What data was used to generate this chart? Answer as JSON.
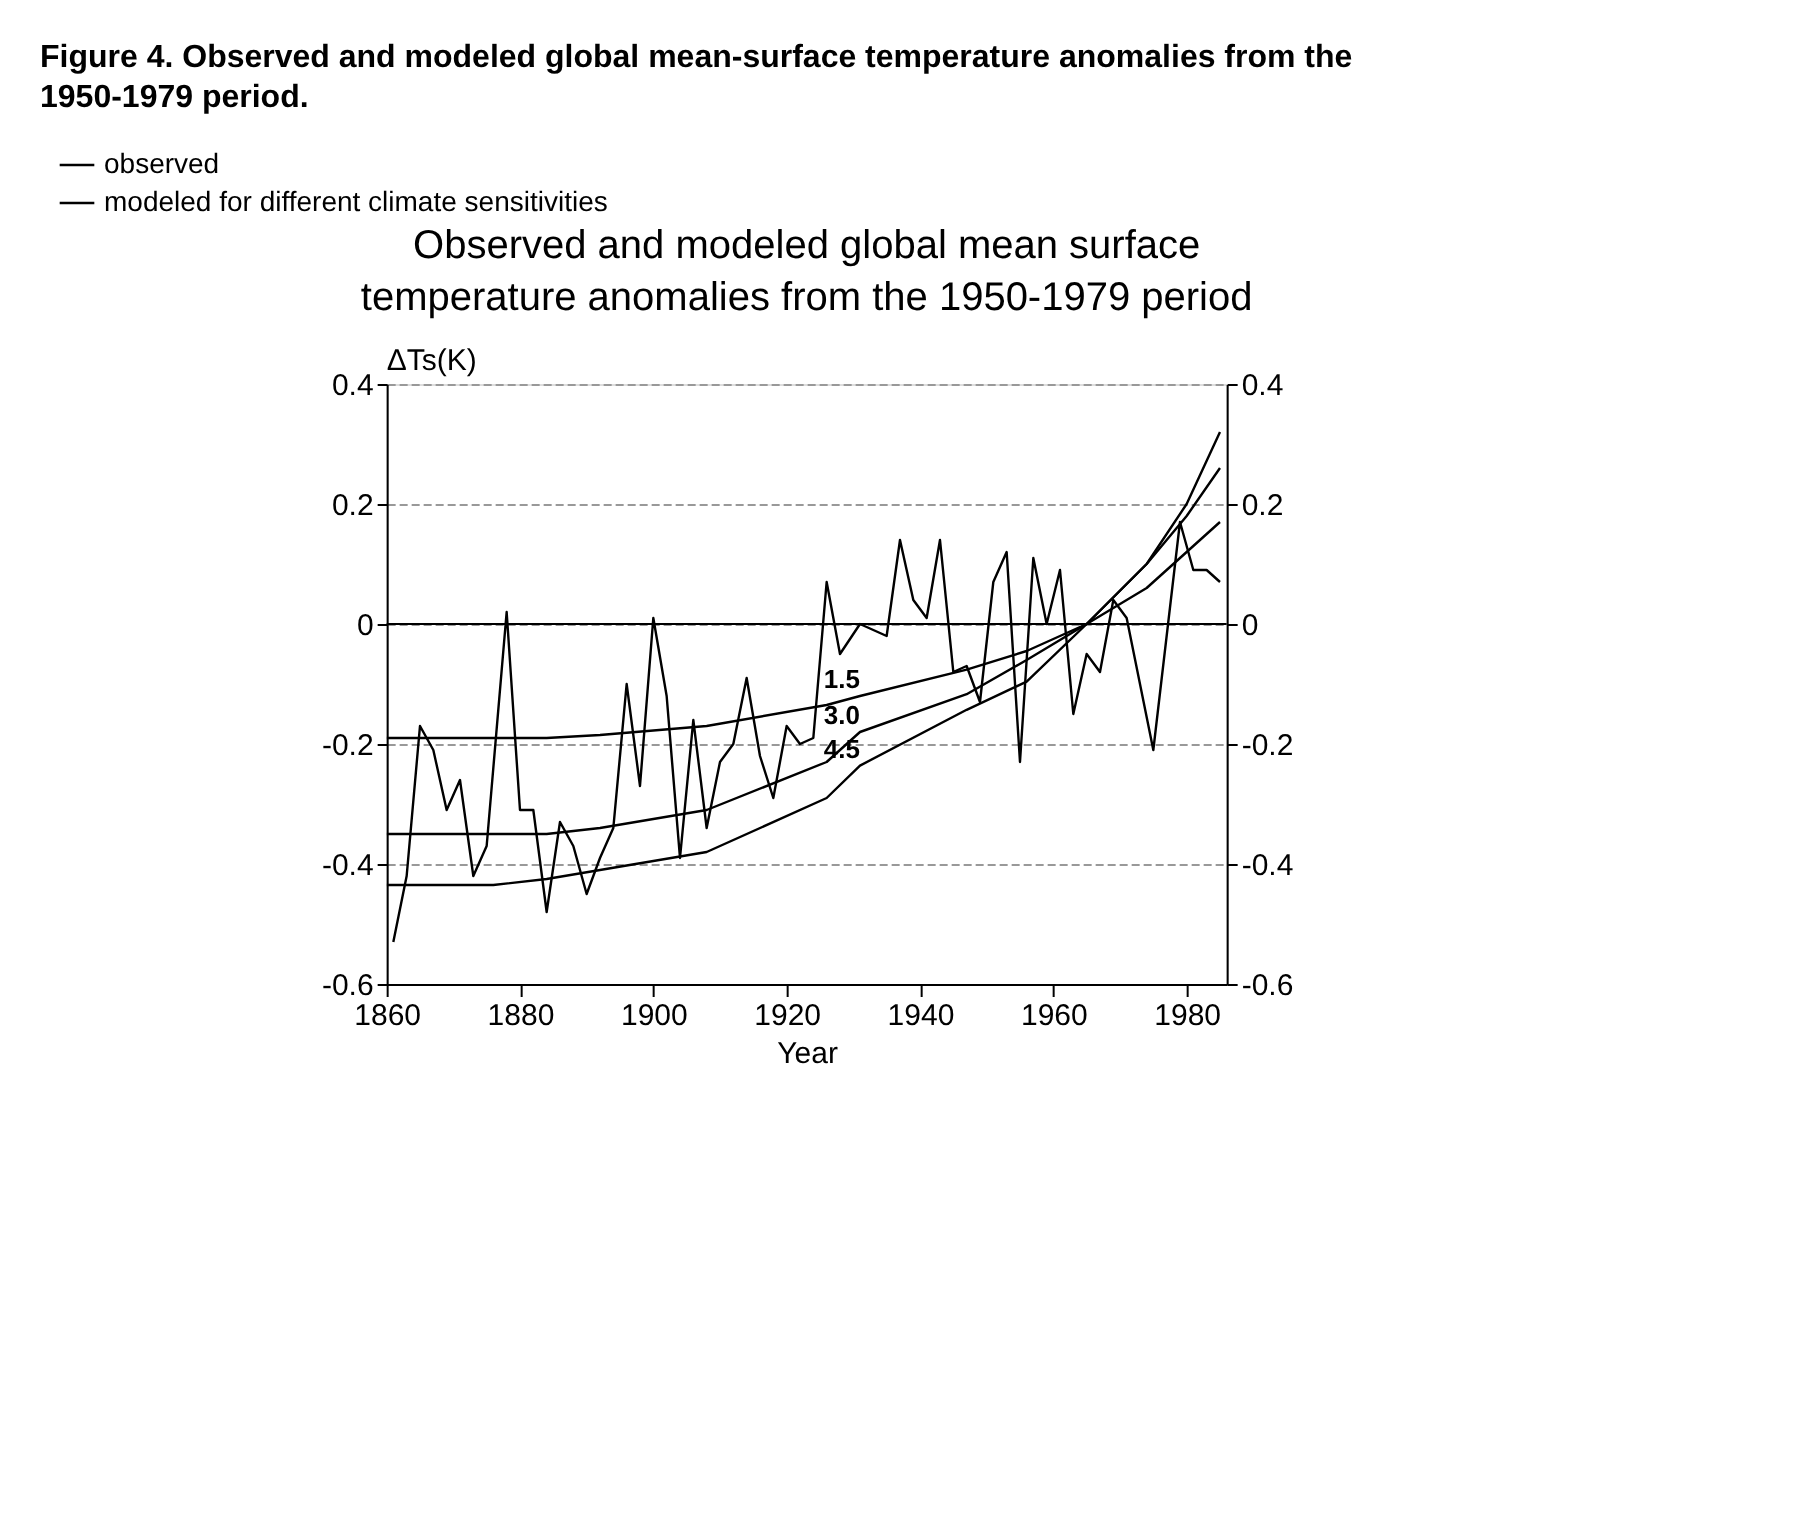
{
  "chart_data": {
    "type": "line",
    "title": "Figure 4. Observed and modeled global mean-surface temperature anomalies from the 1950-1979 period.",
    "subtitle": "Observed and modeled global mean surface temperature anomalies from the 1950-1979 period",
    "xlabel": "Year",
    "ylabel": "ΔTs(K)",
    "xlim": [
      1860,
      1986
    ],
    "xticks": [
      1860,
      1880,
      1900,
      1920,
      1940,
      1960,
      1980
    ],
    "ylim": [
      -0.6,
      0.4
    ],
    "yticks": [
      -0.6,
      -0.4,
      -0.2,
      0,
      0.2,
      0.4
    ],
    "y2lim": [
      -0.6,
      0.4
    ],
    "y2ticks": [
      -0.6,
      -0.4,
      -0.2,
      0,
      0.2,
      0.4
    ],
    "grid": "y",
    "legend": "top left",
    "line_style": "solid",
    "marker": "none",
    "ref_lines": [
      {
        "axis": "y",
        "value": 0,
        "color": "#000000",
        "line_style": "solid"
      }
    ],
    "annotations": [
      "1.5",
      "3.0",
      "4.5"
    ],
    "series": [
      {
        "name": "observed",
        "color": "#000000",
        "x": [
          1861,
          1863,
          1865,
          1867,
          1869,
          1871,
          1873,
          1875,
          1878,
          1880,
          1882,
          1884,
          1886,
          1888,
          1890,
          1892,
          1894,
          1896,
          1898,
          1900,
          1902,
          1904,
          1906,
          1908,
          1910,
          1912,
          1914,
          1916,
          1918,
          1920,
          1922,
          1924,
          1926,
          1928,
          1931,
          1935,
          1937,
          1939,
          1941,
          1943,
          1945,
          1947,
          1949,
          1951,
          1953,
          1955,
          1957,
          1959,
          1961,
          1963,
          1965,
          1967,
          1969,
          1971,
          1975,
          1979,
          1981,
          1983,
          1985
        ],
        "values": [
          -0.53,
          -0.42,
          -0.17,
          -0.21,
          -0.31,
          -0.26,
          -0.42,
          -0.37,
          0.02,
          -0.31,
          -0.31,
          -0.48,
          -0.33,
          -0.37,
          -0.45,
          -0.39,
          -0.34,
          -0.1,
          -0.27,
          0.01,
          -0.12,
          -0.39,
          -0.16,
          -0.34,
          -0.23,
          -0.2,
          -0.09,
          -0.22,
          -0.29,
          -0.17,
          -0.2,
          -0.19,
          0.07,
          -0.05,
          0.0,
          -0.02,
          0.14,
          0.04,
          0.01,
          0.14,
          -0.08,
          -0.07,
          -0.13,
          0.07,
          0.12,
          -0.23,
          0.11,
          0.0,
          0.09,
          -0.15,
          -0.05,
          -0.08,
          0.04,
          0.01,
          -0.21,
          0.17,
          0.09,
          0.09,
          0.07
        ]
      },
      {
        "name": "modeled for different climate sensitivities",
        "color": "#000000",
        "x": [
          1860,
          1884,
          1892,
          1908,
          1926,
          1931,
          1947,
          1956,
          1965,
          1974,
          1980,
          1985
        ],
        "values": [
          -0.19,
          -0.19,
          -0.185,
          -0.17,
          -0.135,
          -0.12,
          -0.076,
          -0.045,
          0.0,
          0.06,
          0.12,
          0.17
        ]
      },
      {
        "color": "#000000",
        "x": [
          1860,
          1884,
          1892,
          1908,
          1926,
          1931,
          1947,
          1956,
          1965,
          1974,
          1980,
          1985
        ],
        "values": [
          -0.35,
          -0.35,
          -0.34,
          -0.31,
          -0.23,
          -0.18,
          -0.117,
          -0.06,
          0.0,
          0.1,
          0.18,
          0.26
        ]
      },
      {
        "color": "#000000",
        "x": [
          1860,
          1876,
          1884,
          1908,
          1926,
          1931,
          1947,
          1956,
          1965,
          1974,
          1980,
          1985
        ],
        "values": [
          -0.435,
          -0.435,
          -0.425,
          -0.38,
          -0.29,
          -0.236,
          -0.143,
          -0.096,
          0.0,
          0.1,
          0.2,
          0.32
        ]
      }
    ]
  }
}
